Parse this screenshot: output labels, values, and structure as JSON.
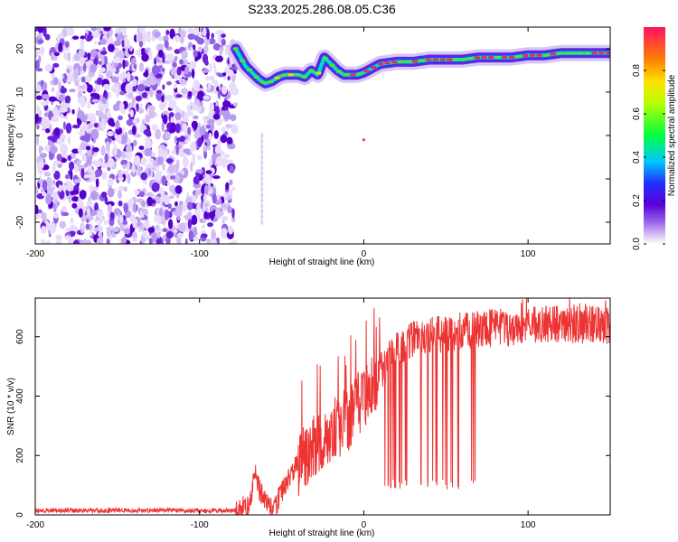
{
  "title": "S233.2025.286.08.05.C36",
  "chart_data": [
    {
      "type": "heatmap",
      "name": "spectrogram",
      "xlabel": "Height of straight line (km)",
      "ylabel": "Frequency (Hz)",
      "xlim": [
        -200,
        150
      ],
      "ylim": [
        -25,
        25
      ],
      "xticks": [
        -200,
        -100,
        0,
        100
      ],
      "yticks": [
        -20,
        -10,
        0,
        10,
        20
      ],
      "noise_region_x": [
        -200,
        -78
      ],
      "signal_track": {
        "x": [
          -78,
          -72,
          -68,
          -64,
          -60,
          -56,
          -52,
          -48,
          -44,
          -40,
          -36,
          -32,
          -28,
          -24,
          -20,
          -16,
          -12,
          -8,
          -4,
          0,
          5,
          10,
          20,
          30,
          40,
          50,
          60,
          70,
          80,
          90,
          100,
          110,
          120,
          130,
          140,
          150
        ],
        "freq": [
          20,
          16,
          14.5,
          13,
          12,
          12.5,
          13.5,
          14,
          14,
          14,
          13.5,
          15,
          14,
          18,
          16.5,
          15,
          14,
          14,
          14,
          14.5,
          15.5,
          16.5,
          17,
          17,
          17.5,
          17.5,
          17.5,
          18,
          18,
          18,
          18.5,
          18.5,
          19,
          19,
          19,
          19
        ]
      },
      "colorbar": {
        "label": "Normalized spectral amplitude",
        "range": [
          0.0,
          1.0
        ],
        "ticks": [
          0.0,
          0.2,
          0.4,
          0.6,
          0.8
        ]
      }
    },
    {
      "type": "line",
      "name": "snr",
      "xlabel": "Height of straight line (km)",
      "ylabel": "SNR (10 * v/v)",
      "xlim": [
        -200,
        150
      ],
      "ylim": [
        0,
        730
      ],
      "xticks": [
        -200,
        -100,
        0,
        100
      ],
      "yticks": [
        0,
        200,
        400,
        600
      ],
      "color": "#ee3333",
      "series": {
        "x": [
          -200,
          -150,
          -100,
          -80,
          -75,
          -70,
          -66,
          -64,
          -60,
          -55,
          -50,
          -45,
          -40,
          -30,
          -20,
          -10,
          0,
          10,
          20,
          30,
          40,
          50,
          60,
          70,
          80,
          90,
          100,
          110,
          120,
          130,
          140,
          150
        ],
        "y": [
          15,
          15,
          15,
          15,
          20,
          30,
          150,
          90,
          40,
          10,
          80,
          130,
          170,
          230,
          280,
          320,
          400,
          480,
          560,
          590,
          600,
          610,
          620,
          625,
          630,
          630,
          635,
          640,
          640,
          640,
          640,
          640
        ]
      },
      "dropouts_x_range": [
        12,
        68
      ]
    }
  ]
}
